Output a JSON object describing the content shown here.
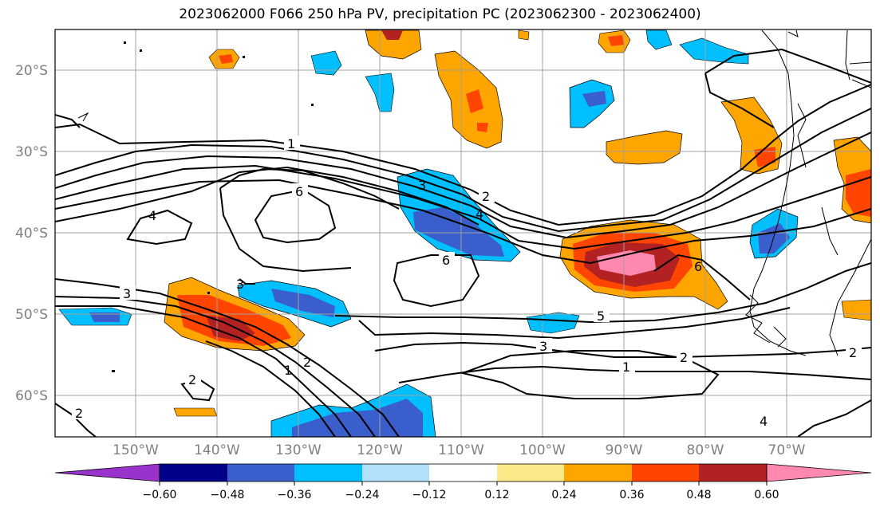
{
  "title": "2023062000 F066 250 hPa PV, precipitation PC (2023062300 - 2023062400)",
  "lat_labels": [
    "20°S",
    "30°S",
    "40°S",
    "50°S",
    "60°S"
  ],
  "lon_labels": [
    "150°W",
    "140°W",
    "130°W",
    "120°W",
    "110°W",
    "100°W",
    "90°W",
    "80°W",
    "70°W"
  ],
  "contour_labels": [
    "1",
    "6",
    "3",
    "2",
    "4",
    "6",
    "3",
    "6",
    "5",
    "3",
    "1",
    "2",
    "3",
    "2",
    "1",
    "2",
    "2",
    "4",
    "2",
    "4"
  ],
  "colorbar": {
    "ticks": [
      "−0.60",
      "−0.48",
      "−0.36",
      "−0.24",
      "−0.12",
      "0.12",
      "0.24",
      "0.36",
      "0.48",
      "0.60"
    ],
    "colors": [
      "#9933cc",
      "#000088",
      "#3a5fcd",
      "#00bfff",
      "#b0e0fa",
      "#ffffff",
      "#fce98a",
      "#ffa500",
      "#ff4500",
      "#b22222",
      "#ff88b0"
    ]
  }
}
